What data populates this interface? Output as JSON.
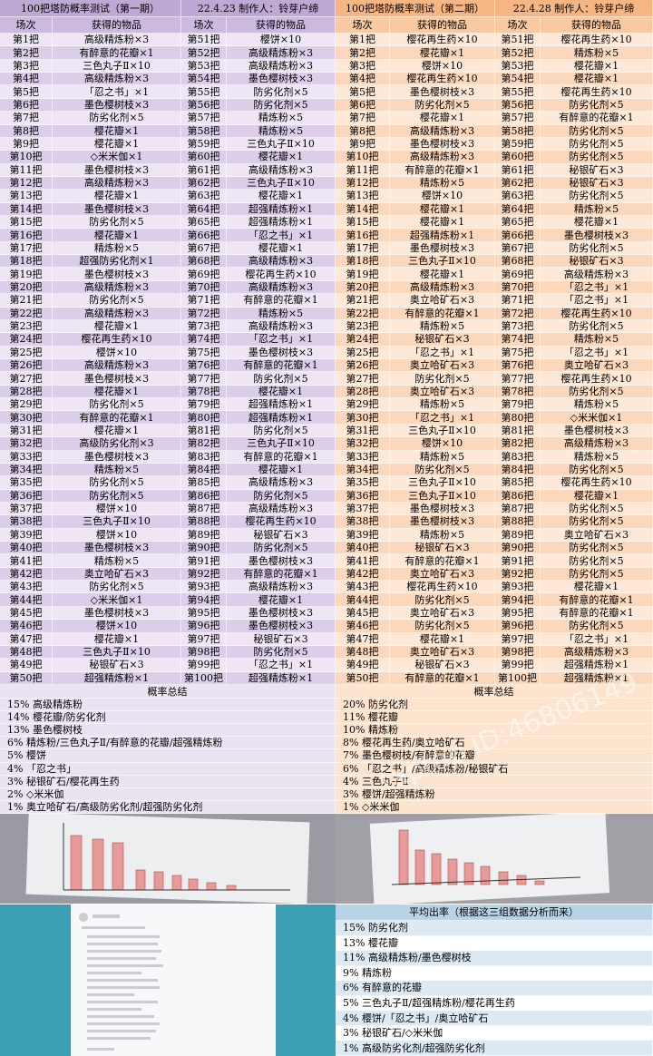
{
  "left": {
    "title": "100把塔防概率测试（第一期）",
    "info": "22.4.23 制作人：铃芽户缔",
    "headers": [
      "场次",
      "获得的物品",
      "场次",
      "获得的物品"
    ],
    "rows": [
      [
        "第1把",
        "高级精炼粉×3",
        "第51把",
        "樱饼×10"
      ],
      [
        "第2把",
        "有醉意的花瓣×1",
        "第52把",
        "高级精炼粉×3"
      ],
      [
        "第3把",
        "三色丸子Ⅱ×10",
        "第53把",
        "高级精炼粉×3"
      ],
      [
        "第4把",
        "高级精炼粉×3",
        "第54把",
        "墨色樱树枝×3"
      ],
      [
        "第5把",
        "「忍之书」×1",
        "第55把",
        "防劣化剂×5"
      ],
      [
        "第6把",
        "墨色樱树枝×3",
        "第56把",
        "防劣化剂×5"
      ],
      [
        "第7把",
        "防劣化剂×5",
        "第57把",
        "精炼粉×5"
      ],
      [
        "第8把",
        "樱花瓣×1",
        "第58把",
        "精炼粉×5"
      ],
      [
        "第9把",
        "樱花瓣×1",
        "第59把",
        "三色丸子Ⅱ×10"
      ],
      [
        "第10把",
        "◇米米伽×1",
        "第60把",
        "樱花瓣×1"
      ],
      [
        "第11把",
        "墨色樱树枝×3",
        "第61把",
        "高级精炼粉×3"
      ],
      [
        "第12把",
        "高级精炼粉×3",
        "第62把",
        "三色丸子Ⅱ×10"
      ],
      [
        "第13把",
        "樱花瓣×1",
        "第63把",
        "樱花瓣×1"
      ],
      [
        "第14把",
        "墨色樱树枝×3",
        "第64把",
        "超强精炼粉×1"
      ],
      [
        "第15把",
        "防劣化剂×5",
        "第65把",
        "超强精炼粉×1"
      ],
      [
        "第16把",
        "樱花瓣×1",
        "第66把",
        "「忍之书」×1"
      ],
      [
        "第17把",
        "精炼粉×5",
        "第67把",
        "樱花瓣×1"
      ],
      [
        "第18把",
        "超强防劣化剂×1",
        "第68把",
        "高级精炼粉×3"
      ],
      [
        "第19把",
        "墨色樱树枝×3",
        "第69把",
        "樱花再生药×10"
      ],
      [
        "第20把",
        "高级精炼粉×3",
        "第70把",
        "高级精炼粉×3"
      ],
      [
        "第21把",
        "防劣化剂×5",
        "第71把",
        "有醉意的花瓣×1"
      ],
      [
        "第22把",
        "高级精炼粉×3",
        "第72把",
        "精炼粉×5"
      ],
      [
        "第23把",
        "樱花瓣×1",
        "第73把",
        "高级精炼粉×3"
      ],
      [
        "第24把",
        "樱花再生药×10",
        "第74把",
        "「忍之书」×1"
      ],
      [
        "第25把",
        "樱饼×10",
        "第75把",
        "墨色樱树枝×3"
      ],
      [
        "第26把",
        "高级精炼粉×3",
        "第76把",
        "有醉意的花瓣×1"
      ],
      [
        "第27把",
        "墨色樱树枝×3",
        "第77把",
        "防劣化剂×5"
      ],
      [
        "第28把",
        "樱花瓣×1",
        "第78把",
        "樱花瓣×1"
      ],
      [
        "第29把",
        "防劣化剂×5",
        "第79把",
        "超强精炼粉×1"
      ],
      [
        "第30把",
        "有醉意的花瓣×1",
        "第80把",
        "超强精炼粉×1"
      ],
      [
        "第31把",
        "樱花瓣×1",
        "第81把",
        "防劣化剂×5"
      ],
      [
        "第32把",
        "高级防劣化剂×3",
        "第82把",
        "三色丸子Ⅱ×10"
      ],
      [
        "第33把",
        "墨色樱树枝×3",
        "第83把",
        "有醉意的花瓣×1"
      ],
      [
        "第34把",
        "精炼粉×5",
        "第84把",
        "樱花瓣×1"
      ],
      [
        "第35把",
        "防劣化剂×5",
        "第85把",
        "高级精炼粉×3"
      ],
      [
        "第36把",
        "防劣化剂×5",
        "第86把",
        "防劣化剂×5"
      ],
      [
        "第37把",
        "樱饼×10",
        "第87把",
        "高级精炼粉×3"
      ],
      [
        "第38把",
        "三色丸子Ⅱ×10",
        "第88把",
        "樱花再生药×10"
      ],
      [
        "第39把",
        "樱饼×10",
        "第89把",
        "秘银矿石×3"
      ],
      [
        "第40把",
        "墨色樱树枝×3",
        "第90把",
        "防劣化剂×5"
      ],
      [
        "第41把",
        "精炼粉×5",
        "第91把",
        "墨色樱树枝×3"
      ],
      [
        "第42把",
        "奥立哈矿石×3",
        "第92把",
        "有醉意的花瓣×1"
      ],
      [
        "第43把",
        "防劣化剂×5",
        "第93把",
        "高级精炼粉×3"
      ],
      [
        "第44把",
        "◇米米伽×1",
        "第94把",
        "樱花瓣×1"
      ],
      [
        "第45把",
        "墨色樱树枝×3",
        "第95把",
        "墨色樱树枝×3"
      ],
      [
        "第46把",
        "樱饼×10",
        "第96把",
        "墨色樱树枝×3"
      ],
      [
        "第47把",
        "樱花瓣×1",
        "第97把",
        "秘银矿石×3"
      ],
      [
        "第48把",
        "三色丸子Ⅱ×10",
        "第98把",
        "防劣化剂×5"
      ],
      [
        "第49把",
        "秘银矿石×3",
        "第99把",
        "「忍之书」×1"
      ],
      [
        "第50把",
        "超强精炼粉×1",
        "第100把",
        "超强精炼粉×1"
      ]
    ],
    "summary_title": "概率总结",
    "summary": [
      "15% 高级精炼粉",
      "14% 樱花瓣/防劣化剂",
      "13% 墨色樱树枝",
      "6% 精炼粉/三色丸子Ⅱ/有醉意的花瓣/超强精炼粉",
      "5% 樱饼",
      "4% 「忍之书」",
      "3% 秘银矿石/樱花再生药",
      "2% ◇米米伽",
      "1% 奥立哈矿石/高级防劣化剂/超强防劣化剂"
    ]
  },
  "right": {
    "title": "100把塔防概率测试（第二期）",
    "info": "22.4.28 制作人：铃芽户缔",
    "headers": [
      "场次",
      "获得的物品",
      "场次",
      "获得的物品"
    ],
    "rows": [
      [
        "第1把",
        "樱花再生药×10",
        "第51把",
        "樱花再生药×10"
      ],
      [
        "第2把",
        "樱花瓣×1",
        "第52把",
        "精炼粉×5"
      ],
      [
        "第3把",
        "樱饼×10",
        "第53把",
        "樱花瓣×1"
      ],
      [
        "第4把",
        "樱花再生药×10",
        "第54把",
        "樱花瓣×1"
      ],
      [
        "第5把",
        "墨色樱树枝×3",
        "第55把",
        "樱花再生药×10"
      ],
      [
        "第6把",
        "防劣化剂×5",
        "第56把",
        "防劣化剂×5"
      ],
      [
        "第7把",
        "樱花瓣×1",
        "第57把",
        "有醉意的花瓣×1"
      ],
      [
        "第8把",
        "高级精炼粉×3",
        "第58把",
        "防劣化剂×5"
      ],
      [
        "第9把",
        "墨色樱树枝×3",
        "第59把",
        "防劣化剂×5"
      ],
      [
        "第10把",
        "高级精炼粉×3",
        "第60把",
        "防劣化剂×5"
      ],
      [
        "第11把",
        "有醉意的花瓣×1",
        "第61把",
        "秘银矿石×3"
      ],
      [
        "第12把",
        "精炼粉×5",
        "第62把",
        "秘银矿石×3"
      ],
      [
        "第13把",
        "樱饼×10",
        "第63把",
        "防劣化剂×5"
      ],
      [
        "第14把",
        "樱花瓣×1",
        "第64把",
        "精炼粉×5"
      ],
      [
        "第15把",
        "樱花瓣×1",
        "第65把",
        "樱花瓣×1"
      ],
      [
        "第16把",
        "超强精炼粉×1",
        "第66把",
        "墨色樱树枝×3"
      ],
      [
        "第17把",
        "墨色樱树枝×3",
        "第67把",
        "防劣化剂×5"
      ],
      [
        "第18把",
        "三色丸子Ⅱ×10",
        "第68把",
        "秘银矿石×3"
      ],
      [
        "第19把",
        "樱花瓣×1",
        "第69把",
        "高级精炼粉×3"
      ],
      [
        "第20把",
        "高级精炼粉×3",
        "第70把",
        "「忍之书」×1"
      ],
      [
        "第21把",
        "奥立哈矿石×3",
        "第71把",
        "「忍之书」×1"
      ],
      [
        "第22把",
        "有醉意的花瓣×1",
        "第72把",
        "樱花再生药×10"
      ],
      [
        "第23把",
        "精炼粉×5",
        "第73把",
        "防劣化剂×5"
      ],
      [
        "第24把",
        "秘银矿石×3",
        "第74把",
        "精炼粉×5"
      ],
      [
        "第25把",
        "「忍之书」×1",
        "第75把",
        "「忍之书」×1"
      ],
      [
        "第26把",
        "奥立哈矿石×3",
        "第76把",
        "奥立哈矿石×3"
      ],
      [
        "第27把",
        "防劣化剂×5",
        "第77把",
        "樱花再生药×10"
      ],
      [
        "第28把",
        "奥立哈矿石×3",
        "第78把",
        "防劣化剂×5"
      ],
      [
        "第29把",
        "精炼粉×5",
        "第79把",
        "精炼粉×5"
      ],
      [
        "第30把",
        "「忍之书」×1",
        "第80把",
        "◇米米伽×1"
      ],
      [
        "第31把",
        "三色丸子Ⅱ×10",
        "第81把",
        "墨色樱树枝×3"
      ],
      [
        "第32把",
        "樱饼×10",
        "第82把",
        "高级精炼粉×3"
      ],
      [
        "第33把",
        "精炼粉×5",
        "第83把",
        "精炼粉×5"
      ],
      [
        "第34把",
        "防劣化剂×5",
        "第84把",
        "防劣化剂×5"
      ],
      [
        "第35把",
        "三色丸子Ⅱ×10",
        "第85把",
        "樱花再生药×10"
      ],
      [
        "第36把",
        "三色丸子Ⅱ×10",
        "第86把",
        "樱花瓣×1"
      ],
      [
        "第37把",
        "墨色樱树枝×3",
        "第87把",
        "防劣化剂×5"
      ],
      [
        "第38把",
        "墨色樱树枝×3",
        "第88把",
        "防劣化剂×5"
      ],
      [
        "第39把",
        "精炼粉×5",
        "第89把",
        "奥立哈矿石×3"
      ],
      [
        "第40把",
        "秘银矿石×3",
        "第90把",
        "防劣化剂×5"
      ],
      [
        "第41把",
        "有醉意的花瓣×1",
        "第91把",
        "防劣化剂×5"
      ],
      [
        "第42把",
        "奥立哈矿石×3",
        "第92把",
        "防劣化剂×5"
      ],
      [
        "第43把",
        "樱花再生药×10",
        "第93把",
        "樱花瓣×1"
      ],
      [
        "第44把",
        "防劣化剂×5",
        "第94把",
        "有醉意的花瓣×1"
      ],
      [
        "第45把",
        "奥立哈矿石×3",
        "第95把",
        "有醉意的花瓣×1"
      ],
      [
        "第46把",
        "防劣化剂×5",
        "第96把",
        "防劣化剂×5"
      ],
      [
        "第47把",
        "樱花瓣×1",
        "第97把",
        "「忍之书」×1"
      ],
      [
        "第48把",
        "奥立哈矿石×3",
        "第98把",
        "高级精炼粉×3"
      ],
      [
        "第49把",
        "秘银矿石×3",
        "第99把",
        "超强精炼粉×1"
      ],
      [
        "第50把",
        "有醉意的花瓣×1",
        "第100把",
        "超强精炼粉×1"
      ]
    ],
    "summary_title": "概率总结",
    "summary": [
      "20% 防劣化剂",
      "11% 樱花瓣",
      "10% 精炼粉",
      "8% 樱花再生药/奥立哈矿石",
      "7% 墨色樱树枝/有醉意的花瓣",
      "6% 「忍之书」/高级精炼粉/秘银矿石",
      "4% 三色丸子Ⅱ",
      "3% 樱饼/超强精炼粉",
      "1% ◇米米伽"
    ]
  },
  "average": {
    "title": "平均出率（根据这三组数据分析而来）",
    "lines": [
      "15% 防劣化剂",
      "13% 樱花瓣",
      "11% 高级精炼粉/墨色樱树枝",
      "9% 精炼粉",
      "6% 有醉意的花瓣",
      "5% 三色丸子Ⅱ/超强精炼粉/樱花再生药",
      "4% 樱饼/「忍之书」/奥立哈矿石",
      "3% 秘银矿石/◇米米伽",
      "1% 高级防劣化剂/超强防劣化剂"
    ]
  },
  "watermark": "taptap ID:46806149"
}
